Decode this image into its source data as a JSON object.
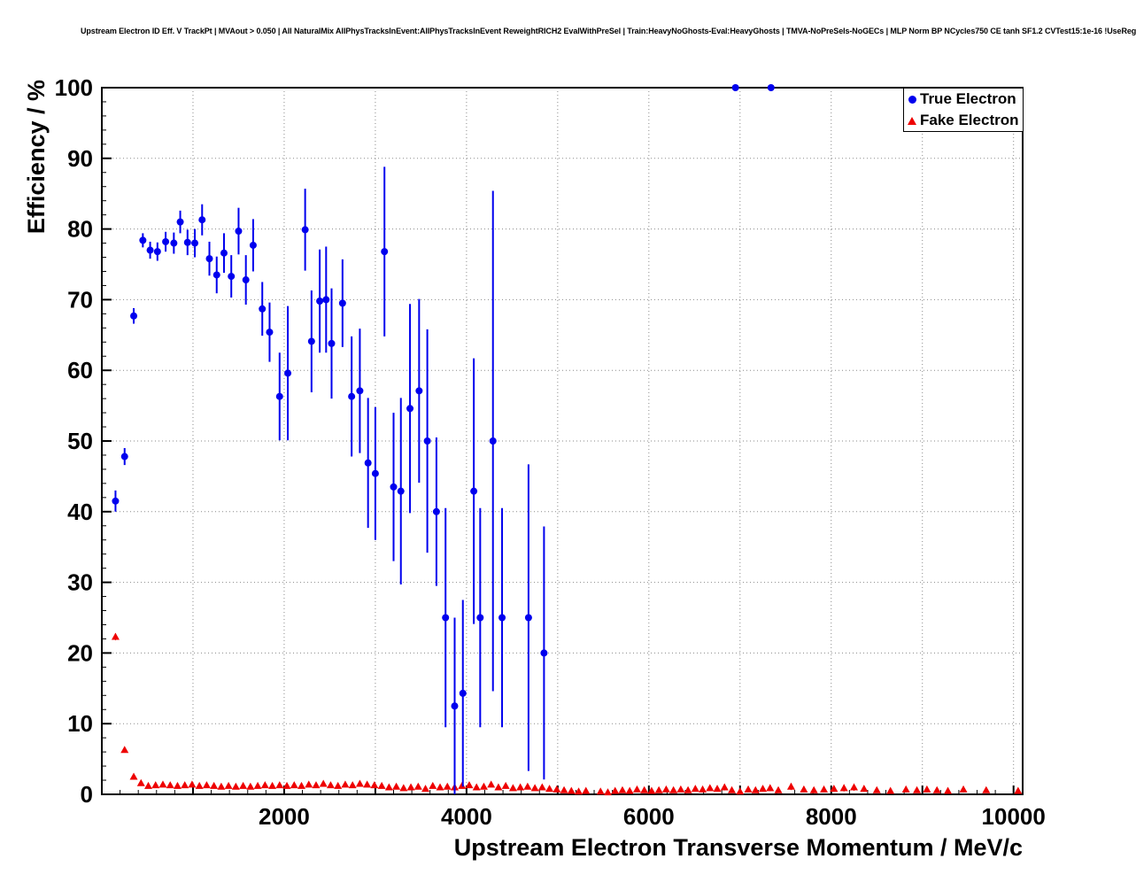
{
  "chart_data": {
    "type": "scatter",
    "title": "Upstream Electron ID Eff. V TrackPt | MVAout > 0.050 | All NaturalMix AllPhysTracksInEvent:AllPhysTracksInEvent ReweightRICH2 EvalWithPreSel | Train:HeavyNoGhosts-Eval:HeavyGhosts | TMVA-NoPreSels-NoGECs | MLP Norm BP NCycles750 CE tanh SF1.2 CVTest15:1e-16 !UseReg",
    "xlabel": "Upstream Electron Transverse Momentum / MeV/c",
    "ylabel": "Efficiency / %",
    "xlim": [
      0,
      10100
    ],
    "ylim": [
      0,
      100
    ],
    "grid": true,
    "x_gridlines": [
      1000,
      2000,
      3000,
      4000,
      5000,
      6000,
      7000,
      8000,
      9000,
      10000
    ],
    "y_gridlines": [
      10,
      20,
      30,
      40,
      50,
      60,
      70,
      80,
      90,
      100
    ],
    "x_tick_labels": [
      2000,
      4000,
      6000,
      8000,
      10000
    ],
    "y_tick_labels": [
      0,
      10,
      20,
      30,
      40,
      50,
      60,
      70,
      80,
      90,
      100
    ],
    "legend": {
      "position": "top-right",
      "entries": [
        {
          "label": "True Electron",
          "marker": "circle",
          "color": "#0000ee"
        },
        {
          "label": "Fake Electron",
          "marker": "triangle",
          "color": "#ee0000"
        }
      ]
    },
    "series": [
      {
        "name": "Fake Electron",
        "marker": "triangle",
        "color": "#ee0000",
        "err_width": 1,
        "points": [
          [
            150,
            22.3,
            0.5
          ],
          [
            250,
            6.3,
            0.4
          ],
          [
            350,
            2.5,
            0.3
          ],
          [
            430,
            1.6,
            0.25
          ],
          [
            510,
            1.2,
            0.2
          ],
          [
            590,
            1.3,
            0.2
          ],
          [
            670,
            1.4,
            0.2
          ],
          [
            750,
            1.3,
            0.2
          ],
          [
            830,
            1.2,
            0.2
          ],
          [
            910,
            1.3,
            0.2
          ],
          [
            990,
            1.4,
            0.2
          ],
          [
            1070,
            1.2,
            0.2
          ],
          [
            1150,
            1.3,
            0.2
          ],
          [
            1230,
            1.2,
            0.2
          ],
          [
            1310,
            1.1,
            0.2
          ],
          [
            1390,
            1.2,
            0.2
          ],
          [
            1470,
            1.1,
            0.2
          ],
          [
            1550,
            1.2,
            0.2
          ],
          [
            1630,
            1.1,
            0.2
          ],
          [
            1710,
            1.2,
            0.2
          ],
          [
            1790,
            1.3,
            0.2
          ],
          [
            1870,
            1.2,
            0.2
          ],
          [
            1950,
            1.3,
            0.25
          ],
          [
            2030,
            1.2,
            0.25
          ],
          [
            2110,
            1.3,
            0.25
          ],
          [
            2190,
            1.2,
            0.25
          ],
          [
            2270,
            1.4,
            0.25
          ],
          [
            2350,
            1.3,
            0.25
          ],
          [
            2430,
            1.5,
            0.3
          ],
          [
            2510,
            1.3,
            0.25
          ],
          [
            2590,
            1.2,
            0.25
          ],
          [
            2670,
            1.4,
            0.3
          ],
          [
            2750,
            1.3,
            0.3
          ],
          [
            2830,
            1.5,
            0.3
          ],
          [
            2910,
            1.4,
            0.3
          ],
          [
            2990,
            1.3,
            0.3
          ],
          [
            3070,
            1.2,
            0.3
          ],
          [
            3150,
            1.0,
            0.3
          ],
          [
            3230,
            1.1,
            0.3
          ],
          [
            3310,
            0.9,
            0.3
          ],
          [
            3390,
            1.0,
            0.3
          ],
          [
            3470,
            1.1,
            0.3
          ],
          [
            3550,
            0.8,
            0.3
          ],
          [
            3630,
            1.2,
            0.3
          ],
          [
            3710,
            1.0,
            0.3
          ],
          [
            3790,
            1.1,
            0.3
          ],
          [
            3870,
            1.0,
            0.3
          ],
          [
            3950,
            1.2,
            0.35
          ],
          [
            4030,
            1.3,
            0.35
          ],
          [
            4110,
            1.0,
            0.3
          ],
          [
            4190,
            1.1,
            0.35
          ],
          [
            4270,
            1.4,
            0.4
          ],
          [
            4350,
            1.0,
            0.35
          ],
          [
            4430,
            1.2,
            0.4
          ],
          [
            4510,
            0.9,
            0.35
          ],
          [
            4590,
            1.0,
            0.4
          ],
          [
            4670,
            1.1,
            0.4
          ],
          [
            4750,
            0.9,
            0.4
          ],
          [
            4830,
            1.0,
            0.4
          ],
          [
            4910,
            0.8,
            0.35
          ],
          [
            4990,
            0.7,
            0.35
          ],
          [
            5070,
            0.6,
            0.3
          ],
          [
            5150,
            0.5,
            0.3
          ],
          [
            5230,
            0.4,
            0.25
          ],
          [
            5310,
            0.5,
            0.3
          ],
          [
            5470,
            0.4,
            0.25
          ],
          [
            5550,
            0.3,
            0.2
          ],
          [
            5630,
            0.5,
            0.3
          ],
          [
            5710,
            0.6,
            0.3
          ],
          [
            5790,
            0.5,
            0.3
          ],
          [
            5870,
            0.7,
            0.35
          ],
          [
            5950,
            0.6,
            0.3
          ],
          [
            6030,
            0.5,
            0.3
          ],
          [
            6110,
            0.6,
            0.3
          ],
          [
            6190,
            0.7,
            0.35
          ],
          [
            6270,
            0.6,
            0.3
          ],
          [
            6350,
            0.7,
            0.35
          ],
          [
            6430,
            0.6,
            0.3
          ],
          [
            6510,
            0.8,
            0.4
          ],
          [
            6590,
            0.7,
            0.35
          ],
          [
            6670,
            0.9,
            0.4
          ],
          [
            6750,
            0.8,
            0.4
          ],
          [
            6830,
            1.0,
            0.45
          ],
          [
            6910,
            0.6,
            0.35
          ],
          [
            7000,
            0.4,
            0.3
          ],
          [
            7090,
            0.7,
            0.4
          ],
          [
            7170,
            0.6,
            0.35
          ],
          [
            7250,
            0.8,
            0.4
          ],
          [
            7330,
            0.9,
            0.45
          ],
          [
            7420,
            0.6,
            0.35
          ],
          [
            7560,
            1.1,
            0.5
          ],
          [
            7700,
            0.7,
            0.4
          ],
          [
            7810,
            0.6,
            0.4
          ],
          [
            7920,
            0.7,
            0.4
          ],
          [
            8030,
            0.8,
            0.45
          ],
          [
            8140,
            0.9,
            0.5
          ],
          [
            8250,
            1.0,
            0.5
          ],
          [
            8360,
            0.8,
            0.45
          ],
          [
            8500,
            0.6,
            0.4
          ],
          [
            8650,
            0.5,
            0.35
          ],
          [
            8820,
            0.7,
            0.45
          ],
          [
            8940,
            0.6,
            0.4
          ],
          [
            9050,
            0.7,
            0.45
          ],
          [
            9160,
            0.6,
            0.4
          ],
          [
            9280,
            0.5,
            0.4
          ],
          [
            9450,
            0.7,
            0.45
          ],
          [
            9700,
            0.6,
            0.4
          ],
          [
            10050,
            0.5,
            0.4
          ]
        ]
      },
      {
        "name": "True Electron",
        "marker": "circle",
        "color": "#0000ee",
        "err_width": 2,
        "points": [
          [
            150,
            41.5,
            1.5
          ],
          [
            250,
            47.8,
            1.2
          ],
          [
            350,
            67.7,
            1.1
          ],
          [
            450,
            78.4,
            1.0
          ],
          [
            530,
            77.0,
            1.2
          ],
          [
            610,
            76.8,
            1.3
          ],
          [
            700,
            78.2,
            1.4
          ],
          [
            790,
            78.0,
            1.5
          ],
          [
            860,
            81.0,
            1.6
          ],
          [
            940,
            78.1,
            1.8
          ],
          [
            1020,
            78.0,
            2.0
          ],
          [
            1100,
            81.3,
            2.2
          ],
          [
            1180,
            75.8,
            2.4
          ],
          [
            1260,
            73.5,
            2.6
          ],
          [
            1340,
            76.6,
            2.8
          ],
          [
            1420,
            73.3,
            3.0
          ],
          [
            1500,
            79.7,
            3.3
          ],
          [
            1580,
            72.8,
            3.5
          ],
          [
            1660,
            77.7,
            3.7
          ],
          [
            1760,
            68.7,
            3.8
          ],
          [
            1840,
            65.4,
            4.2
          ],
          [
            1950,
            56.3,
            6.2
          ],
          [
            2040,
            59.6,
            9.5
          ],
          [
            2230,
            79.9,
            5.8
          ],
          [
            2300,
            64.1,
            7.2
          ],
          [
            2390,
            69.8,
            7.3
          ],
          [
            2460,
            70.0,
            7.5
          ],
          [
            2520,
            63.8,
            7.8
          ],
          [
            2640,
            69.5,
            6.2
          ],
          [
            2740,
            56.3,
            8.5
          ],
          [
            2830,
            57.1,
            8.8
          ],
          [
            2920,
            46.9,
            9.2
          ],
          [
            3000,
            45.4,
            9.4
          ],
          [
            3100,
            76.8,
            12.0
          ],
          [
            3200,
            43.5,
            10.5
          ],
          [
            3280,
            42.9,
            13.2
          ],
          [
            3380,
            54.6,
            14.8
          ],
          [
            3480,
            57.1,
            13.0
          ],
          [
            3570,
            50.0,
            15.8
          ],
          [
            3670,
            40.0,
            10.5
          ],
          [
            3770,
            25.0,
            15.5
          ],
          [
            3870,
            12.5,
            12.5
          ],
          [
            3960,
            14.3,
            13.2
          ],
          [
            4080,
            42.9,
            18.8
          ],
          [
            4150,
            25.0,
            15.5
          ],
          [
            4290,
            50.0,
            35.4
          ],
          [
            4390,
            25.0,
            15.5
          ],
          [
            4680,
            25.0,
            21.7
          ],
          [
            4850,
            20.0,
            17.9
          ],
          [
            6950,
            100.0,
            0.0
          ],
          [
            7340,
            100.0,
            0.0
          ]
        ]
      }
    ]
  }
}
